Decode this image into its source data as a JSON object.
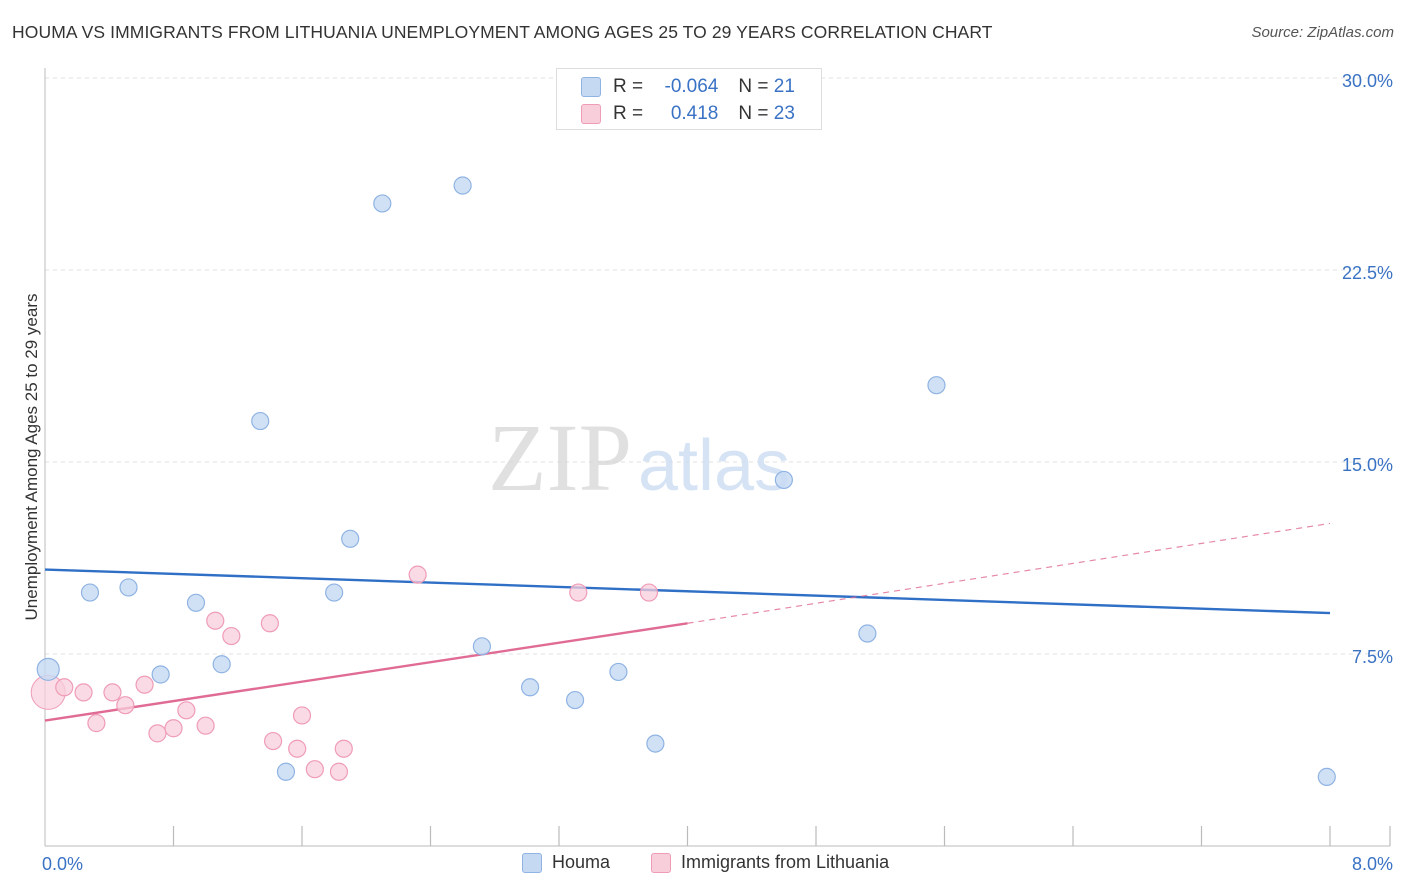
{
  "title": "HOUMA VS IMMIGRANTS FROM LITHUANIA UNEMPLOYMENT AMONG AGES 25 TO 29 YEARS CORRELATION CHART",
  "source": "Source: ZipAtlas.com",
  "watermark": {
    "zip": "ZIP",
    "atlas": "atlas"
  },
  "colors": {
    "houma_fill": "#c5d9f3",
    "houma_stroke": "#8fb3e3",
    "houma_line": "#2f6fc6",
    "lith_fill": "#f8cedb",
    "lith_stroke": "#ef9cb7",
    "lith_line": "#e06b94",
    "tick_label": "#3a72c4",
    "grid": "#e2e2e2"
  },
  "stats_box": {
    "row1": {
      "r_label": "R = ",
      "r_value": "-0.064",
      "n_label": "N = ",
      "n_value": "21"
    },
    "row2": {
      "r_label": "R = ",
      "r_value": "0.418",
      "n_label": "N = ",
      "n_value": "23"
    }
  },
  "legend": [
    {
      "label": "Houma"
    },
    {
      "label": "Immigrants from Lithuania"
    }
  ],
  "chart_data": {
    "type": "scatter",
    "ylabel": "Unemployment Among Ages 25 to 29 years",
    "xlabel": "",
    "xlim": [
      0.0,
      8.0
    ],
    "ylim": [
      0.0,
      30.0
    ],
    "x_tick_labels": [
      "0.0%",
      "8.0%"
    ],
    "y_ticks": [
      7.5,
      15.0,
      22.5,
      30.0
    ],
    "y_tick_labels": [
      "7.5%",
      "15.0%",
      "22.5%",
      "30.0%"
    ],
    "series": [
      {
        "name": "Houma",
        "r": -0.064,
        "n": 21,
        "points": [
          {
            "x": 0.02,
            "y": 6.9
          },
          {
            "x": 0.28,
            "y": 9.9
          },
          {
            "x": 0.52,
            "y": 10.1
          },
          {
            "x": 0.72,
            "y": 6.7
          },
          {
            "x": 0.94,
            "y": 9.5
          },
          {
            "x": 1.1,
            "y": 7.1
          },
          {
            "x": 1.34,
            "y": 16.6
          },
          {
            "x": 1.5,
            "y": 2.9
          },
          {
            "x": 1.8,
            "y": 9.9
          },
          {
            "x": 1.9,
            "y": 12.0
          },
          {
            "x": 2.1,
            "y": 25.1
          },
          {
            "x": 2.6,
            "y": 25.8
          },
          {
            "x": 2.72,
            "y": 7.8
          },
          {
            "x": 3.02,
            "y": 6.2
          },
          {
            "x": 3.3,
            "y": 5.7
          },
          {
            "x": 3.57,
            "y": 6.8
          },
          {
            "x": 3.8,
            "y": 4.0
          },
          {
            "x": 4.6,
            "y": 14.3
          },
          {
            "x": 5.12,
            "y": 8.3
          },
          {
            "x": 5.55,
            "y": 18.0
          },
          {
            "x": 7.98,
            "y": 2.7
          }
        ],
        "trend": {
          "x": [
            0.0,
            8.0
          ],
          "y": [
            10.8,
            9.1
          ]
        }
      },
      {
        "name": "Immigrants from Lithuania",
        "r": 0.418,
        "n": 23,
        "points": [
          {
            "x": 0.02,
            "y": 6.0
          },
          {
            "x": 0.12,
            "y": 6.2
          },
          {
            "x": 0.24,
            "y": 6.0
          },
          {
            "x": 0.32,
            "y": 4.8
          },
          {
            "x": 0.42,
            "y": 6.0
          },
          {
            "x": 0.5,
            "y": 5.5
          },
          {
            "x": 0.62,
            "y": 6.3
          },
          {
            "x": 0.7,
            "y": 4.4
          },
          {
            "x": 0.8,
            "y": 4.6
          },
          {
            "x": 0.88,
            "y": 5.3
          },
          {
            "x": 1.0,
            "y": 4.7
          },
          {
            "x": 1.06,
            "y": 8.8
          },
          {
            "x": 1.16,
            "y": 8.2
          },
          {
            "x": 1.4,
            "y": 8.7
          },
          {
            "x": 1.42,
            "y": 4.1
          },
          {
            "x": 1.57,
            "y": 3.8
          },
          {
            "x": 1.6,
            "y": 5.1
          },
          {
            "x": 1.68,
            "y": 3.0
          },
          {
            "x": 1.83,
            "y": 2.9
          },
          {
            "x": 1.86,
            "y": 3.8
          },
          {
            "x": 2.32,
            "y": 10.6
          },
          {
            "x": 3.32,
            "y": 9.9
          },
          {
            "x": 3.76,
            "y": 9.9
          }
        ],
        "trend": {
          "x": [
            0.0,
            4.0
          ],
          "y": [
            4.9,
            8.7
          ]
        },
        "trend_extension": {
          "x": [
            4.0,
            8.0
          ],
          "y": [
            8.7,
            12.6
          ]
        }
      }
    ]
  }
}
